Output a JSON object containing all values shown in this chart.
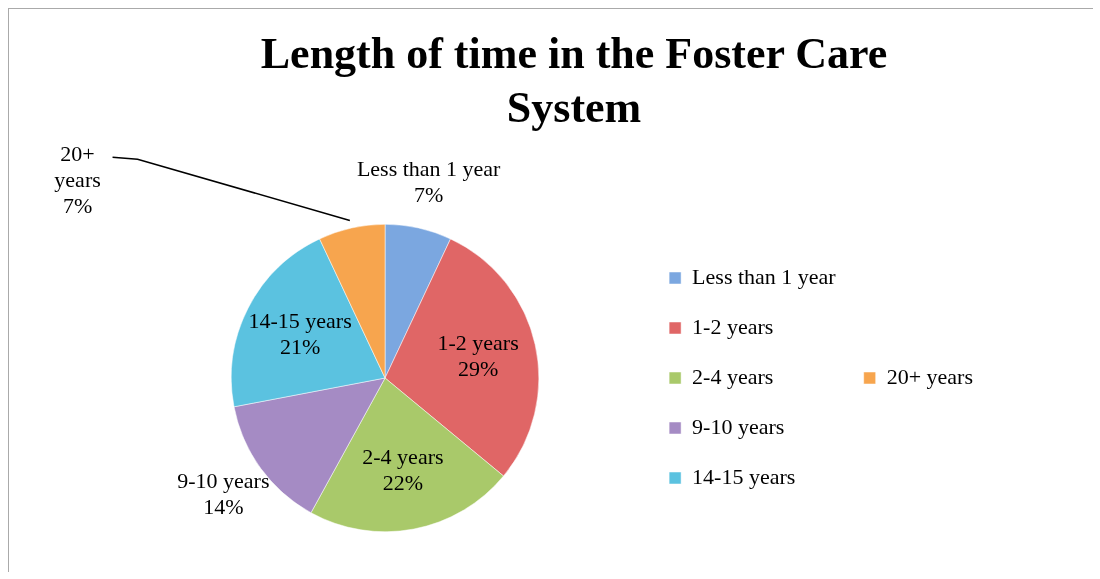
{
  "chart_data": {
    "type": "pie",
    "title": "Length of time in the Foster Care System",
    "categories": [
      "Less than 1 year",
      "1-2 years",
      "2-4 years",
      "9-10 years",
      "14-15 years",
      "20+ years"
    ],
    "values": [
      7,
      29,
      22,
      14,
      21,
      7
    ],
    "colors": [
      "#7ba7e0",
      "#e06666",
      "#a9c96a",
      "#a58bc4",
      "#5bc2e0",
      "#f7a54e"
    ],
    "value_labels": [
      "7%",
      "29%",
      "22%",
      "14%",
      "21%",
      "7%"
    ],
    "legend": "right"
  }
}
